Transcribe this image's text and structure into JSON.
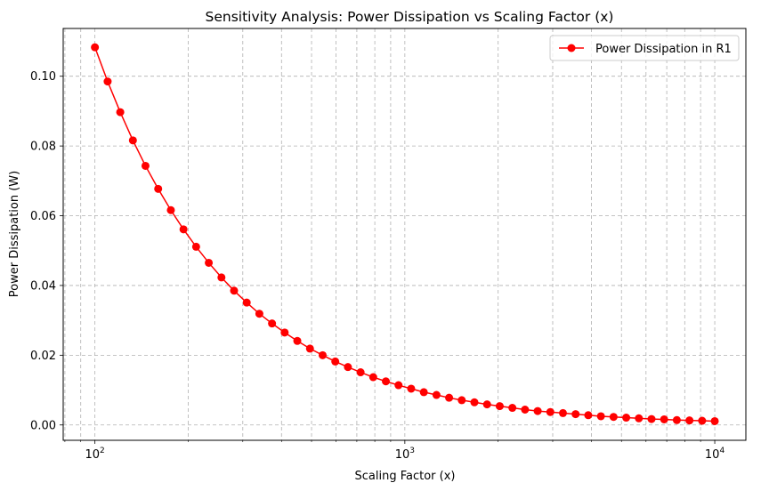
{
  "chart_data": {
    "type": "line",
    "title": "Sensitivity Analysis: Power Dissipation vs Scaling Factor (x)",
    "xlabel": "Scaling Factor (x)",
    "ylabel": "Power Dissipation (W)",
    "xscale": "log",
    "xlim": [
      79,
      12600
    ],
    "ylim": [
      -0.0044,
      0.1137
    ],
    "grid": true,
    "legend_position": "top-right",
    "x_ticks": [
      {
        "value": 100,
        "base": "10",
        "exp": "2"
      },
      {
        "value": 1000,
        "base": "10",
        "exp": "3"
      },
      {
        "value": 10000,
        "base": "10",
        "exp": "4"
      }
    ],
    "y_ticks": [
      {
        "value": 0.0,
        "label": "0.00"
      },
      {
        "value": 0.02,
        "label": "0.02"
      },
      {
        "value": 0.04,
        "label": "0.04"
      },
      {
        "value": 0.06,
        "label": "0.06"
      },
      {
        "value": 0.08,
        "label": "0.08"
      },
      {
        "value": 0.1,
        "label": "0.10"
      }
    ],
    "series": [
      {
        "name": "Power Dissipation in R1",
        "color": "#ff0000",
        "marker": "circle",
        "x": [
          100,
          109.9,
          120.7,
          132.6,
          145.6,
          160.0,
          175.8,
          193.1,
          212.1,
          233.0,
          256.0,
          281.2,
          308.9,
          339.3,
          372.8,
          409.5,
          449.8,
          494.2,
          542.9,
          596.4,
          655.1,
          719.7,
          790.6,
          868.5,
          954.1,
          1048.1,
          1151.4,
          1264.9,
          1389.5,
          1526.4,
          1676.8,
          1842.1,
          2023.6,
          2222.9,
          2442.0,
          2682.7,
          2947.1,
          3237.5,
          3556.5,
          3906.9,
          4291.9,
          4714.9,
          5179.5,
          5689.9,
          6250.6,
          6866.5,
          7543.1,
          8286.4,
          9103.0,
          10000
        ],
        "y": [
          0.1083,
          0.0985,
          0.0897,
          0.0816,
          0.0743,
          0.0677,
          0.0616,
          0.0561,
          0.0511,
          0.0465,
          0.0423,
          0.0385,
          0.0351,
          0.0319,
          0.0291,
          0.0265,
          0.0241,
          0.0219,
          0.02,
          0.0182,
          0.0166,
          0.0151,
          0.0137,
          0.0125,
          0.0114,
          0.0104,
          0.0094,
          0.0086,
          0.0078,
          0.0071,
          0.0065,
          0.0059,
          0.0054,
          0.0049,
          0.0044,
          0.004,
          0.0037,
          0.0034,
          0.0031,
          0.0028,
          0.0025,
          0.0023,
          0.0021,
          0.0019,
          0.0017,
          0.0016,
          0.0014,
          0.0013,
          0.0012,
          0.0011
        ]
      }
    ]
  }
}
